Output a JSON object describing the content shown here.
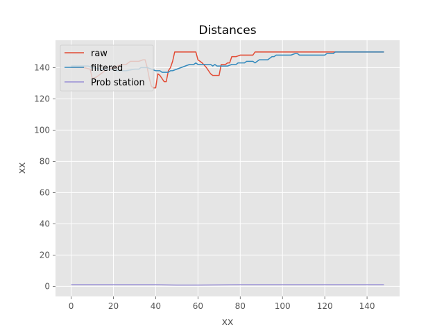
{
  "chart_data": {
    "type": "line",
    "title": "Distances",
    "xlabel": "xx",
    "ylabel": "xx",
    "xlim": [
      -7.4,
      155.4
    ],
    "ylim": [
      -6.5,
      157.5
    ],
    "xticks": [
      0,
      20,
      40,
      60,
      80,
      100,
      120,
      140
    ],
    "yticks": [
      0,
      20,
      40,
      60,
      80,
      100,
      120,
      140
    ],
    "grid": true,
    "legend_position": "top-left",
    "series": [
      {
        "name": "raw",
        "color": "#E24A33",
        "points": [
          [
            0,
            140
          ],
          [
            3,
            140
          ],
          [
            6,
            140
          ],
          [
            9,
            139
          ],
          [
            10,
            133
          ],
          [
            12,
            134
          ],
          [
            14,
            136
          ],
          [
            16,
            138
          ],
          [
            18,
            139
          ],
          [
            20,
            140
          ],
          [
            22,
            141
          ],
          [
            24,
            142
          ],
          [
            26,
            142
          ],
          [
            27,
            143
          ],
          [
            28,
            144
          ],
          [
            30,
            144
          ],
          [
            32,
            144
          ],
          [
            34,
            145
          ],
          [
            35,
            145
          ],
          [
            36,
            140
          ],
          [
            37,
            133
          ],
          [
            38,
            128
          ],
          [
            39,
            127
          ],
          [
            40,
            127
          ],
          [
            41,
            136
          ],
          [
            42,
            135
          ],
          [
            43,
            133
          ],
          [
            44,
            131
          ],
          [
            45,
            131
          ],
          [
            46,
            138
          ],
          [
            47,
            140
          ],
          [
            48,
            144
          ],
          [
            49,
            150
          ],
          [
            50,
            150
          ],
          [
            52,
            150
          ],
          [
            54,
            150
          ],
          [
            56,
            150
          ],
          [
            58,
            150
          ],
          [
            59,
            150
          ],
          [
            60,
            145
          ],
          [
            62,
            143
          ],
          [
            64,
            140
          ],
          [
            65,
            138
          ],
          [
            66,
            136
          ],
          [
            67,
            135
          ],
          [
            68,
            135
          ],
          [
            69,
            135
          ],
          [
            70,
            135
          ],
          [
            71,
            142
          ],
          [
            72,
            142
          ],
          [
            73,
            142
          ],
          [
            74,
            143
          ],
          [
            75,
            143
          ],
          [
            76,
            147
          ],
          [
            77,
            147
          ],
          [
            78,
            147
          ],
          [
            80,
            148
          ],
          [
            82,
            148
          ],
          [
            84,
            148
          ],
          [
            86,
            148
          ],
          [
            87,
            150
          ],
          [
            90,
            150
          ],
          [
            95,
            150
          ],
          [
            100,
            150
          ],
          [
            105,
            150
          ],
          [
            110,
            150
          ],
          [
            115,
            150
          ],
          [
            120,
            150
          ],
          [
            125,
            150
          ],
          [
            130,
            150
          ],
          [
            135,
            150
          ],
          [
            140,
            150
          ],
          [
            145,
            150
          ],
          [
            148,
            150
          ]
        ]
      },
      {
        "name": "filtered",
        "color": "#348ABD",
        "points": [
          [
            0,
            141
          ],
          [
            4,
            141
          ],
          [
            8,
            141
          ],
          [
            10,
            140
          ],
          [
            14,
            139
          ],
          [
            18,
            139
          ],
          [
            22,
            138
          ],
          [
            26,
            138
          ],
          [
            30,
            139
          ],
          [
            32,
            139
          ],
          [
            33,
            140
          ],
          [
            36,
            140
          ],
          [
            38,
            139
          ],
          [
            40,
            138
          ],
          [
            42,
            138
          ],
          [
            43,
            137
          ],
          [
            46,
            137
          ],
          [
            47,
            138
          ],
          [
            48,
            138
          ],
          [
            50,
            139
          ],
          [
            52,
            140
          ],
          [
            54,
            141
          ],
          [
            56,
            142
          ],
          [
            58,
            142
          ],
          [
            59,
            143
          ],
          [
            60,
            142
          ],
          [
            62,
            142
          ],
          [
            64,
            142
          ],
          [
            66,
            142
          ],
          [
            67,
            141
          ],
          [
            68,
            142
          ],
          [
            69,
            141
          ],
          [
            70,
            141
          ],
          [
            72,
            141
          ],
          [
            74,
            141
          ],
          [
            76,
            142
          ],
          [
            78,
            142
          ],
          [
            79,
            143
          ],
          [
            82,
            143
          ],
          [
            83,
            144
          ],
          [
            86,
            144
          ],
          [
            87,
            143
          ],
          [
            88,
            144
          ],
          [
            89,
            145
          ],
          [
            90,
            145
          ],
          [
            92,
            145
          ],
          [
            93,
            145
          ],
          [
            94,
            146
          ],
          [
            95,
            147
          ],
          [
            96,
            147
          ],
          [
            97,
            148
          ],
          [
            100,
            148
          ],
          [
            104,
            148
          ],
          [
            106,
            149
          ],
          [
            107,
            149
          ],
          [
            108,
            148
          ],
          [
            112,
            148
          ],
          [
            116,
            148
          ],
          [
            120,
            148
          ],
          [
            121,
            149
          ],
          [
            124,
            149
          ],
          [
            125,
            150
          ],
          [
            130,
            150
          ],
          [
            135,
            150
          ],
          [
            140,
            150
          ],
          [
            145,
            150
          ],
          [
            148,
            150
          ]
        ]
      },
      {
        "name": "Prob station",
        "color": "#988ED5",
        "points": [
          [
            0,
            1
          ],
          [
            20,
            1
          ],
          [
            40,
            1
          ],
          [
            50,
            0.8
          ],
          [
            60,
            0.8
          ],
          [
            70,
            0.9
          ],
          [
            80,
            1
          ],
          [
            100,
            1
          ],
          [
            120,
            1
          ],
          [
            140,
            1
          ],
          [
            148,
            1
          ]
        ]
      }
    ]
  }
}
